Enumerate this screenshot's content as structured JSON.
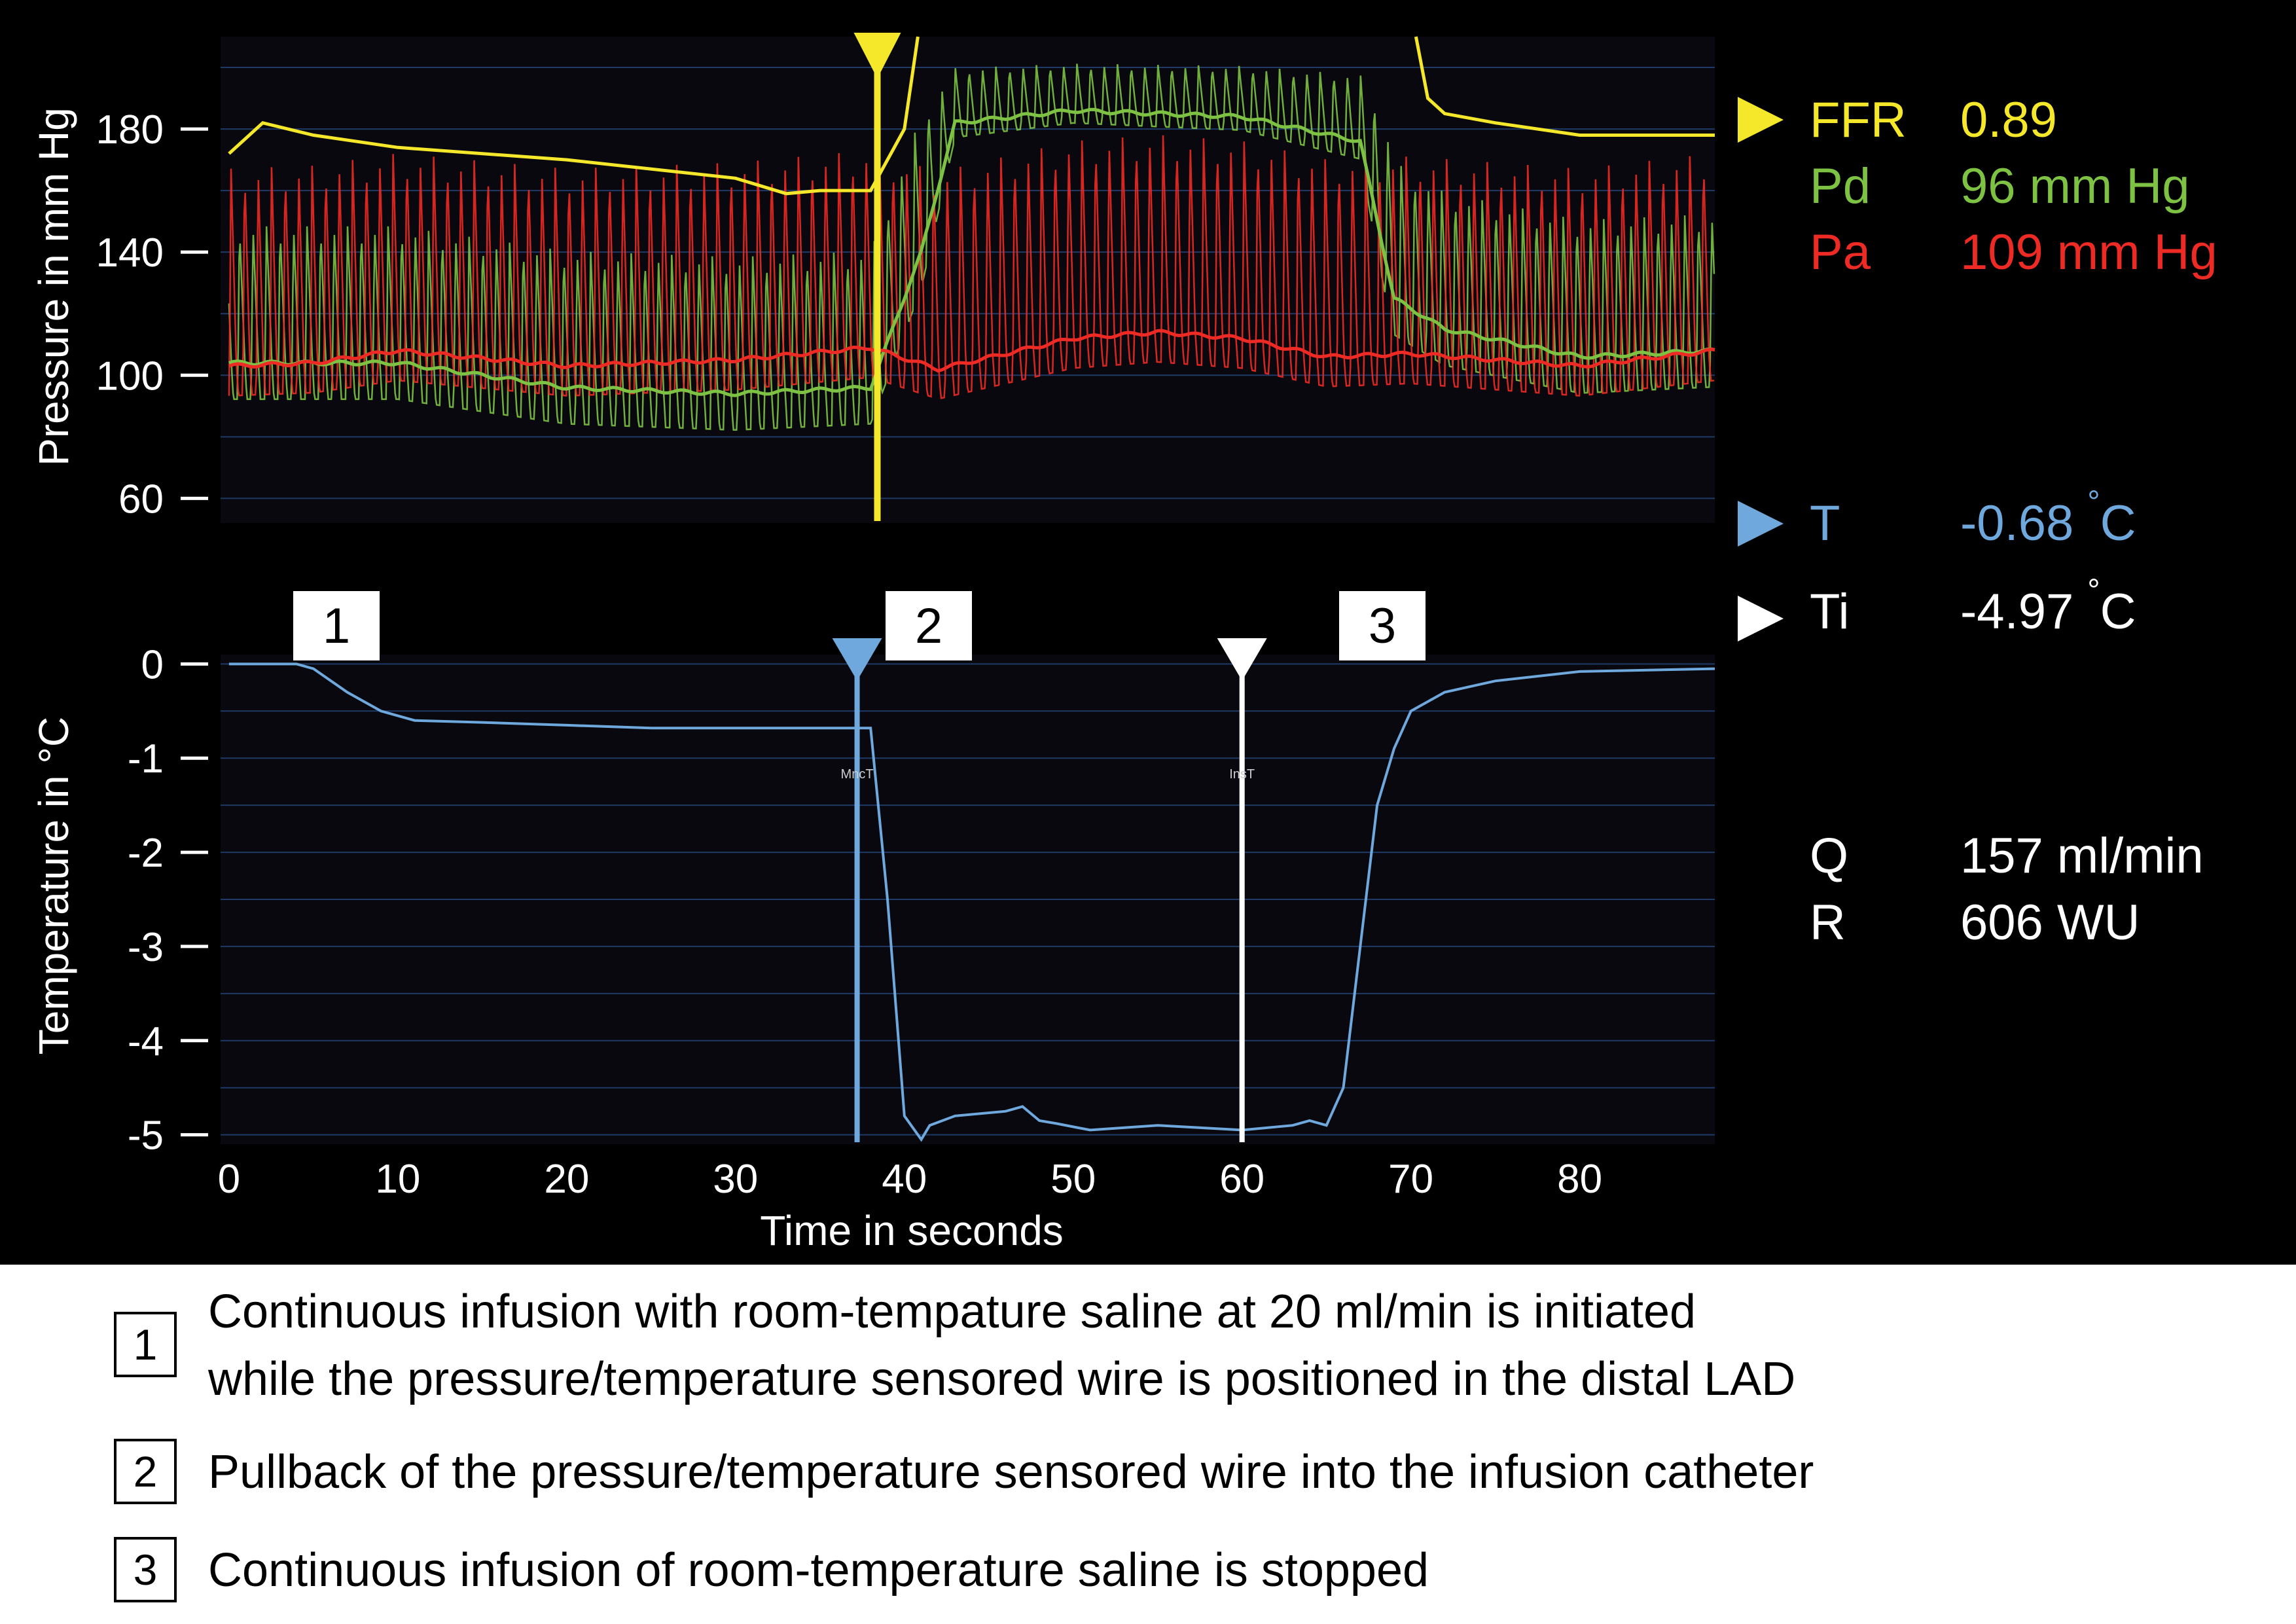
{
  "pressure_panel": {
    "ylabel": "Pressure in mm Hg",
    "yticks": [
      "180",
      "140",
      "100",
      "60"
    ]
  },
  "temperature_panel": {
    "ylabel": "Temperature in °C",
    "yticks": [
      "0",
      "-1",
      "-2",
      "-3",
      "-4",
      "-5"
    ],
    "xlabel": "Time in seconds",
    "xticks": [
      "0",
      "10",
      "20",
      "30",
      "40",
      "50",
      "60",
      "70",
      "80"
    ],
    "marker_labels": [
      "MncT",
      "InsT"
    ]
  },
  "readouts": {
    "ffr": {
      "label": "FFR",
      "value": "0.89",
      "color": "#f5e72a"
    },
    "pd": {
      "label": "Pd",
      "value": "96 mm Hg",
      "color": "#7dc242"
    },
    "pa": {
      "label": "Pa",
      "value": "109 mm Hg",
      "color": "#ee2a24"
    },
    "t": {
      "label": "T",
      "value": "-0.68",
      "unit": "C",
      "color": "#6fa8dc"
    },
    "ti": {
      "label": "Ti",
      "value": "-4.97",
      "unit": "C",
      "color": "#ffffff"
    },
    "q": {
      "label": "Q",
      "value": "157 ml/min"
    },
    "r": {
      "label": "R",
      "value": "606 WU"
    },
    "degree_symbol": "°"
  },
  "phase_markers": [
    "1",
    "2",
    "3"
  ],
  "notes": [
    {
      "num": "1",
      "lines": [
        "Continuous infusion with room-tempature saline at 20 ml/min is initiated",
        "while the pressure/temperature sensored wire is positioned in the distal LAD"
      ]
    },
    {
      "num": "2",
      "lines": [
        "Pullback of the pressure/temperature sensored wire into the infusion catheter"
      ]
    },
    {
      "num": "3",
      "lines": [
        "Continuous infusion of room-temperature saline is stopped"
      ]
    }
  ],
  "chart_data": [
    {
      "type": "line",
      "panel": "pressure",
      "ylabel": "Pressure in mm Hg",
      "ylim": [
        52,
        210
      ],
      "xlim": [
        -0.5,
        88
      ],
      "grid": true,
      "series": [
        {
          "name": "Pa",
          "color": "#ee2a24",
          "mean": {
            "x": [
              0,
              5,
              10,
              20,
              30,
              38,
              42,
              50,
              55,
              60,
              65,
              70,
              80,
              88
            ],
            "y": [
              103,
              104,
              108,
              103,
              105,
              109,
              102,
              112,
              114,
              112,
              106,
              107,
              103,
              108
            ]
          },
          "pulse": {
            "diastolic": 80,
            "systolic": 155
          }
        },
        {
          "name": "Pd",
          "color": "#7dc242",
          "mean": {
            "x": [
              0,
              5,
              10,
              20,
              30,
              38,
              41,
              43,
              50,
              60,
              67,
              69,
              72,
              80,
              88
            ],
            "y": [
              104,
              104,
              104,
              96,
              94,
              96,
              140,
              182,
              186,
              184,
              176,
              125,
              115,
              106,
              108
            ]
          },
          "pulse": {
            "diastolic": 76,
            "systolic": 140
          }
        },
        {
          "name": "FFR",
          "color": "#f5e72a",
          "x": [
            0,
            2,
            5,
            10,
            20,
            30,
            33,
            35,
            38,
            40,
            40.8
          ],
          "y": [
            172,
            182,
            178,
            174,
            170,
            164,
            159,
            160,
            160,
            180,
            210
          ],
          "x2": [
            70.3,
            71,
            72,
            75,
            80,
            88
          ],
          "y2": [
            210,
            190,
            185,
            182,
            178,
            178
          ]
        }
      ],
      "markers": [
        {
          "x": 38.4,
          "series": "FFR"
        }
      ]
    },
    {
      "type": "line",
      "panel": "temperature",
      "xlabel": "Time in seconds",
      "ylabel": "Temperature in °C",
      "ylim": [
        -5.1,
        0.1
      ],
      "xlim": [
        -0.5,
        88
      ],
      "grid": true,
      "series": [
        {
          "name": "T",
          "color": "#6fa8dc",
          "x": [
            0,
            4,
            5,
            7,
            9,
            11,
            15,
            20,
            25,
            30,
            35,
            38,
            39,
            40,
            41,
            41.5,
            43,
            46,
            47,
            48,
            49,
            51,
            55,
            60,
            63,
            64,
            65,
            66,
            67,
            68,
            69,
            70,
            72,
            75,
            80,
            88
          ],
          "y": [
            0,
            0,
            -0.05,
            -0.3,
            -0.5,
            -0.6,
            -0.62,
            -0.65,
            -0.68,
            -0.68,
            -0.68,
            -0.68,
            -2.5,
            -4.8,
            -5.05,
            -4.9,
            -4.8,
            -4.75,
            -4.7,
            -4.85,
            -4.88,
            -4.95,
            -4.9,
            -4.95,
            -4.9,
            -4.85,
            -4.9,
            -4.5,
            -3.0,
            -1.5,
            -0.9,
            -0.5,
            -0.3,
            -0.18,
            -0.08,
            -0.05
          ]
        }
      ],
      "markers": [
        {
          "x": 37.2,
          "label": "MncT",
          "color": "#6fa8dc"
        },
        {
          "x": 60,
          "label": "InsT",
          "color": "#ffffff"
        }
      ]
    }
  ]
}
